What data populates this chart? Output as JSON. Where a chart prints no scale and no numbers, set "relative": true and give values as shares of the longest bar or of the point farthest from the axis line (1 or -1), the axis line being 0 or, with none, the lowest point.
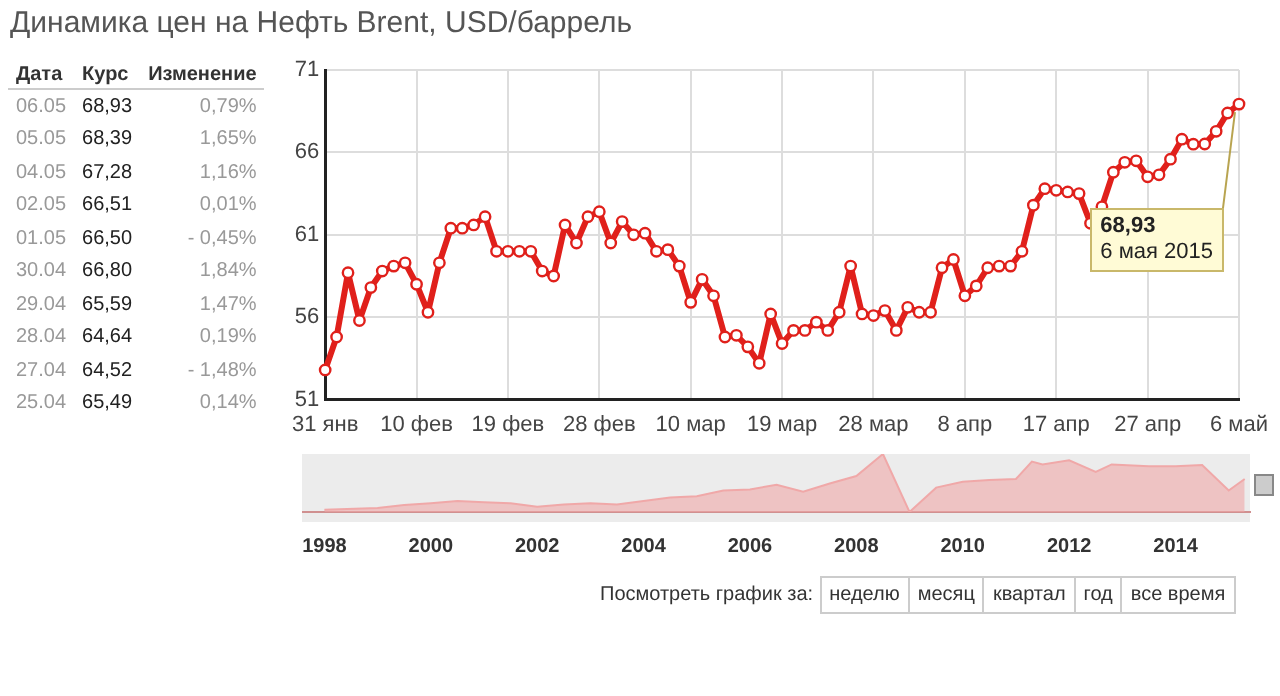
{
  "chart_data": [
    {
      "type": "line",
      "title": "Динамика цен на Нефть Brent, USD/баррель",
      "categories": [
        "31 янв",
        null,
        null,
        null,
        null,
        null,
        null,
        null,
        "10 фев",
        null,
        null,
        null,
        null,
        null,
        null,
        null,
        "19 фев",
        null,
        null,
        null,
        null,
        null,
        null,
        null,
        "28 фев",
        null,
        null,
        null,
        null,
        null,
        null,
        null,
        "10 мар",
        null,
        null,
        null,
        null,
        null,
        null,
        null,
        "19 мар",
        null,
        null,
        null,
        null,
        null,
        null,
        null,
        "28 мар",
        null,
        null,
        null,
        null,
        null,
        null,
        null,
        "8 апр",
        null,
        null,
        null,
        null,
        null,
        null,
        null,
        "17 апр",
        null,
        null,
        null,
        null,
        null,
        null,
        null,
        "27 апр",
        null,
        null,
        null,
        null,
        null,
        null,
        null,
        "6 май"
      ],
      "series": [
        {
          "color": "#e0201b",
          "values": [
            52.8,
            54.8,
            58.7,
            55.8,
            57.8,
            58.8,
            59.1,
            59.3,
            58.0,
            56.3,
            59.3,
            61.4,
            61.4,
            61.6,
            62.1,
            60.0,
            60.0,
            60.0,
            60.0,
            58.8,
            58.5,
            61.6,
            60.5,
            62.1,
            62.4,
            60.5,
            61.8,
            61.0,
            61.1,
            60.0,
            60.1,
            59.1,
            56.9,
            58.3,
            57.3,
            54.8,
            54.9,
            54.2,
            53.2,
            56.2,
            54.4,
            55.2,
            55.2,
            55.7,
            55.2,
            56.3,
            59.1,
            56.2,
            56.1,
            56.4,
            55.2,
            56.6,
            56.3,
            56.3,
            59.0,
            59.5,
            57.3,
            57.9,
            59.0,
            59.1,
            59.1,
            60.0,
            62.8,
            63.8,
            63.7,
            63.6,
            63.5,
            61.7,
            62.7,
            64.8,
            65.4,
            65.49,
            64.52,
            64.64,
            65.59,
            66.8,
            66.5,
            66.51,
            67.28,
            68.39,
            68.93
          ]
        }
      ],
      "ylim": [
        51,
        71
      ],
      "yticks": [
        51,
        56,
        61,
        66,
        71
      ],
      "grid": true,
      "marker": "circle",
      "annotations": [
        {
          "text": "68,93\n6 мая 2015",
          "x": "6 май",
          "y": 68.93
        }
      ]
    },
    {
      "type": "other",
      "annotations": [
        "Дата",
        "Курс",
        "Изменение",
        "06.05",
        "68,93",
        "0,79%",
        "05.05",
        "68,39",
        "1,65%",
        "04.05",
        "67,28",
        "1,16%",
        "02.05",
        "66,51",
        "0,01%",
        "01.05",
        "66,50",
        "- 0,45%",
        "30.04",
        "66,80",
        "1,84%",
        "29.04",
        "65,59",
        "1,47%",
        "28.04",
        "64,64",
        "0,19%",
        "27.04",
        "64,52",
        "- 1,48%",
        "25.04",
        "65,49",
        "0,14%"
      ]
    },
    {
      "type": "area",
      "relative": true,
      "color": "#f0a8a8",
      "x": [
        1998.0,
        1999.0,
        1999.5,
        2000.0,
        2000.5,
        2001.0,
        2001.5,
        2002.0,
        2002.5,
        2003.0,
        2003.5,
        2004.0,
        2004.5,
        2005.0,
        2005.5,
        2006.0,
        2006.5,
        2007.0,
        2007.5,
        2008.0,
        2008.5,
        2009.0,
        2009.5,
        2010.0,
        2010.5,
        2011.0,
        2011.3,
        2011.5,
        2012.0,
        2012.5,
        2012.8,
        2013.5,
        2014.0,
        2014.5,
        2015.0,
        2015.3
      ],
      "values": [
        0.04,
        0.07,
        0.12,
        0.15,
        0.19,
        0.17,
        0.15,
        0.09,
        0.13,
        0.15,
        0.13,
        0.19,
        0.25,
        0.27,
        0.37,
        0.39,
        0.47,
        0.35,
        0.49,
        0.62,
        1.0,
        0,
        0.42,
        0.52,
        0.55,
        0.57,
        0.87,
        0.82,
        0.89,
        0.69,
        0.82,
        0.79,
        0.79,
        0.81,
        0.37,
        0.57
      ],
      "xlim": [
        1997.6,
        2015.4
      ],
      "xticks": [
        1998,
        2000,
        2002,
        2004,
        2006,
        2008,
        2010,
        2012,
        2014
      ]
    },
    {
      "type": "other",
      "title": "Посмотреть график за:",
      "annotations": [
        "неделю",
        "месяц",
        "квартал",
        "год",
        "все время"
      ]
    }
  ]
}
